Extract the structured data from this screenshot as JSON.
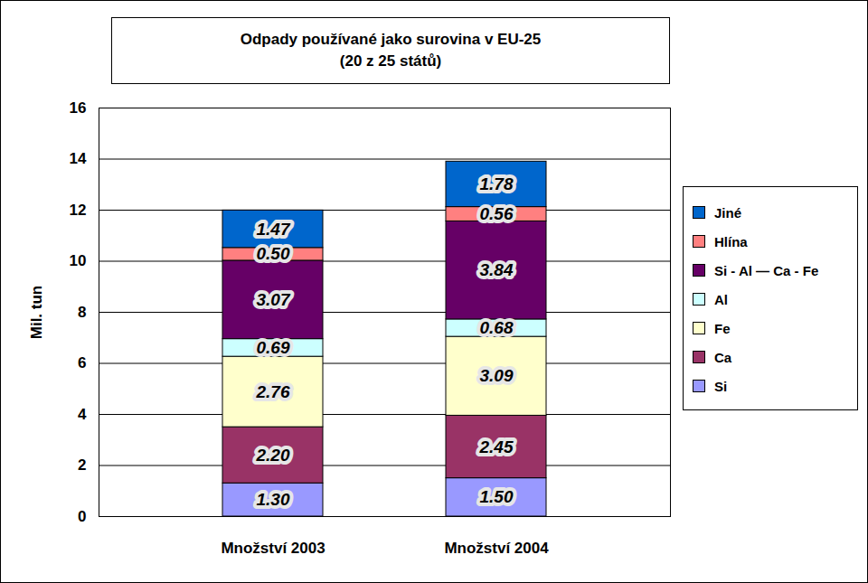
{
  "chart_data": {
    "type": "bar",
    "title": "Odpady používané jako surovina v EU-25",
    "subtitle": "(20 z 25 států)",
    "y_label": "Mil. tun",
    "categories": [
      "Množství 2003",
      "Množství 2004"
    ],
    "series": [
      {
        "name": "Si",
        "color": "#9999ff",
        "values": [
          1.3,
          1.5
        ],
        "value_labels": [
          "1.30",
          "1.50"
        ]
      },
      {
        "name": "Ca",
        "color": "#993366",
        "values": [
          2.2,
          2.45
        ],
        "value_labels": [
          "2.20",
          "2.45"
        ]
      },
      {
        "name": "Fe",
        "color": "#ffffcc",
        "values": [
          2.76,
          3.09
        ],
        "value_labels": [
          "2.76",
          "3.09"
        ]
      },
      {
        "name": "Al",
        "color": "#ccffff",
        "values": [
          0.69,
          0.68
        ],
        "value_labels": [
          "0.69",
          "0.68"
        ]
      },
      {
        "name": "Si - Al — Ca - Fe",
        "color": "#660066",
        "values": [
          3.07,
          3.84
        ],
        "value_labels": [
          "3.07",
          "3.84"
        ]
      },
      {
        "name": "Hlína",
        "color": "#ff8080",
        "values": [
          0.5,
          0.56
        ],
        "value_labels": [
          "0.50",
          "0.56"
        ]
      },
      {
        "name": "Jiné",
        "color": "#0066cc",
        "values": [
          1.47,
          1.78
        ],
        "value_labels": [
          "1.47",
          "1.78"
        ]
      }
    ],
    "ylim": [
      0,
      16
    ],
    "yticks": [
      0,
      2,
      4,
      6,
      8,
      10,
      12,
      14,
      16
    ],
    "grid": true,
    "stacked": true,
    "data_labels": true,
    "legend": "right"
  }
}
